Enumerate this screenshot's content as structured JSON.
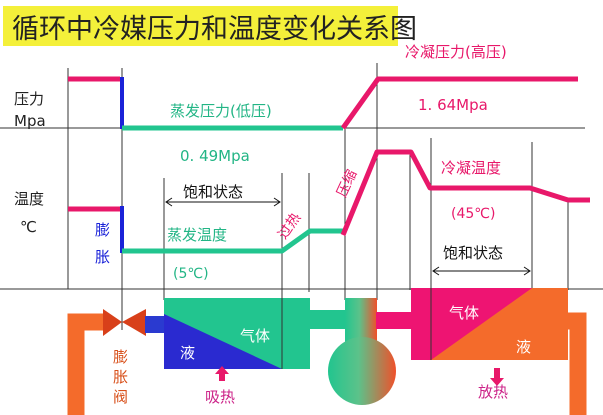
{
  "title": "循环中冷媒压力和温度变化关系图",
  "axes": {
    "pressure_label": "压力",
    "pressure_unit": "Mpa",
    "temperature_label": "温度",
    "temperature_unit": "℃"
  },
  "labels": {
    "expansion": [
      "膨",
      "胀"
    ],
    "evap_pressure": "蒸发压力(低压)",
    "evap_pressure_value": "0. 49Mpa",
    "saturation_left": "饱和状态",
    "evap_temp": "蒸发温度",
    "evap_temp_value": "(5℃)",
    "superheat": "过热",
    "compression": "压缩",
    "cond_pressure": "冷凝压力(高压)",
    "cond_pressure_value": "1. 64Mpa",
    "cond_temp": "冷凝温度",
    "cond_temp_value": "(45℃)",
    "saturation_right": "饱和状态"
  },
  "components": {
    "valve_label": [
      "膨",
      "胀",
      "阀"
    ],
    "evap_liquid": "液",
    "evap_gas": "气体",
    "absorb_heat": "吸热",
    "cond_gas": "气体",
    "cond_liquid": "液",
    "release_heat": "放热"
  },
  "colors": {
    "title_highlight": "#f4f03a",
    "high_side": "#e8186a",
    "low_side": "#22c58f",
    "expansion": "#1a22d8",
    "pipe_loop": "#f46b2b",
    "evap_liquid": "#2a2ad0",
    "cond_gas": "#ee1472"
  }
}
